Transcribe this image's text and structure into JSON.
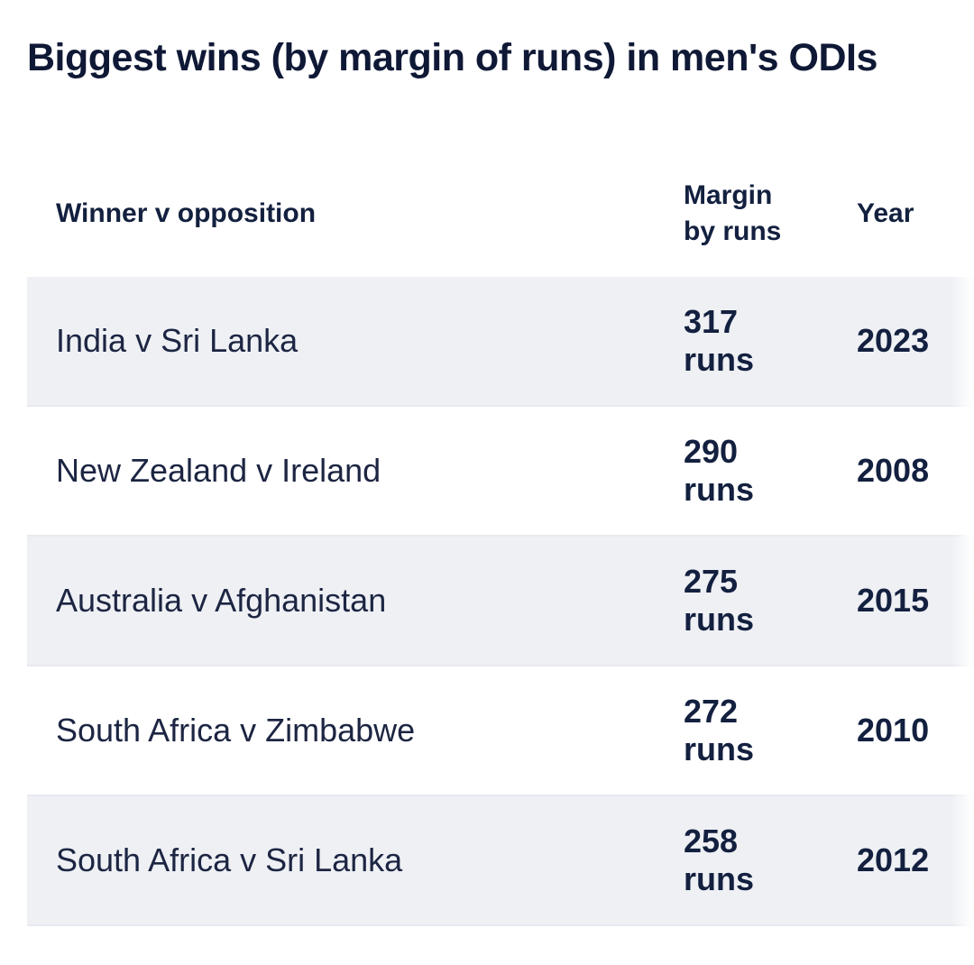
{
  "page": {
    "title": "Biggest wins (by margin of runs) in men's ODIs"
  },
  "table": {
    "columns": [
      {
        "label": "Winner v opposition"
      },
      {
        "label": "Margin by runs"
      },
      {
        "label": "Year"
      }
    ],
    "rows": [
      {
        "match": "India v Sri Lanka",
        "margin": "317 runs",
        "year": "2023"
      },
      {
        "match": "New Zealand v Ireland",
        "margin": "290 runs",
        "year": "2008"
      },
      {
        "match": "Australia v Afghanistan",
        "margin": "275 runs",
        "year": "2015"
      },
      {
        "match": "South Africa v Zimbabwe",
        "margin": "272 runs",
        "year": "2010"
      },
      {
        "match": "South Africa v Sri Lanka",
        "margin": "258 runs",
        "year": "2012"
      }
    ]
  },
  "colors": {
    "text_navy": "#13203f",
    "title_navy": "#0f1936",
    "row_alt_background": "#eef0f4",
    "row_border": "#e7e9ef",
    "page_background": "#ffffff"
  }
}
